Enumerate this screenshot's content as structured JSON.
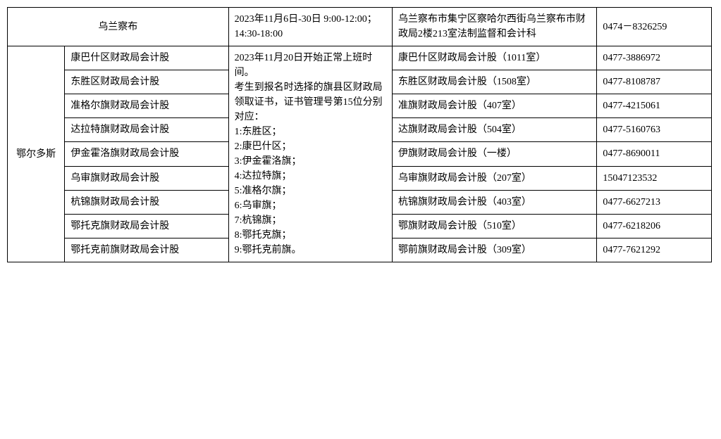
{
  "table": {
    "row_wlcb": {
      "city": "乌兰察布",
      "office": "",
      "time": "2023年11月6日-30日 9:00-12:00；14:30-18:00",
      "addr": "乌兰察布市集宁区察哈尔西街乌兰察布市财政局2楼213室法制监督和会计科",
      "phone": "0474－8326259"
    },
    "eerduosi": {
      "city": "鄂尔多斯",
      "time": "2023年11月20日开始正常上班时间。\n考生到报名时选择的旗县区财政局领取证书，证书管理号第15位分别对应：\n1:东胜区；\n2:康巴什区；\n3:伊金霍洛旗；\n4:达拉特旗；\n5:准格尔旗；\n6:乌审旗；\n7:杭锦旗；\n8:鄂托克旗；\n9:鄂托克前旗。",
      "rows": [
        {
          "office": "康巴什区财政局会计股",
          "addr": "康巴什区财政局会计股（1011室）",
          "phone": "0477-3886972"
        },
        {
          "office": "东胜区财政局会计股",
          "addr": "东胜区财政局会计股（1508室）",
          "phone": "0477-8108787"
        },
        {
          "office": "准格尔旗财政局会计股",
          "addr": "准旗财政局会计股（407室）",
          "phone": "0477-4215061"
        },
        {
          "office": "达拉特旗财政局会计股",
          "addr": "达旗财政局会计股（504室）",
          "phone": "0477-5160763"
        },
        {
          "office": "伊金霍洛旗财政局会计股",
          "addr": "伊旗财政局会计股（一楼）",
          "phone": "0477-8690011"
        },
        {
          "office": "乌审旗财政局会计股",
          "addr": "乌审旗财政局会计股（207室）",
          "phone": "15047123532"
        },
        {
          "office": "杭锦旗财政局会计股",
          "addr": "杭锦旗财政局会计股（403室）",
          "phone": "0477-6627213"
        },
        {
          "office": "鄂托克旗财政局会计股",
          "addr": "鄂旗财政局会计股（510室）",
          "phone": "0477-6218206"
        },
        {
          "office": "鄂托克前旗财政局会计股",
          "addr": "鄂前旗财政局会计股（309室）",
          "phone": "0477-7621292"
        }
      ]
    }
  }
}
